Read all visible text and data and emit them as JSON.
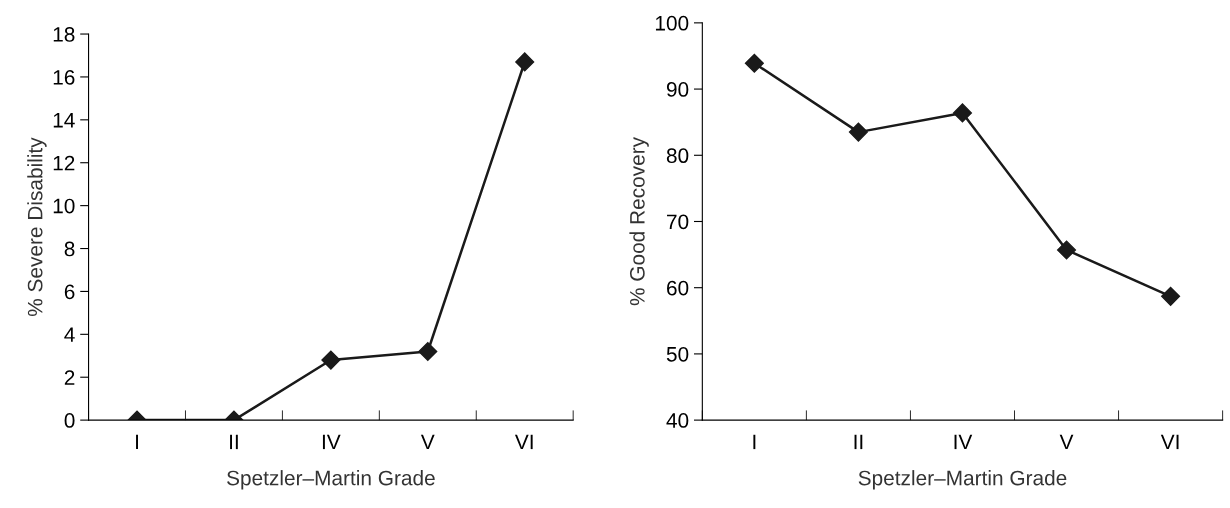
{
  "chart_data": [
    {
      "type": "line",
      "xlabel": "Spetzler–Martin Grade",
      "ylabel": "% Severe Disability",
      "categories": [
        "I",
        "II",
        "IV",
        "V",
        "VI"
      ],
      "series": [
        {
          "color": "#1a1a1a",
          "values": [
            0,
            0,
            2.8,
            3.2,
            16.7
          ]
        }
      ],
      "ylim": [
        0,
        18
      ],
      "yticks": [
        0,
        2,
        4,
        6,
        8,
        10,
        12,
        14,
        16,
        18
      ],
      "marker": "diamond",
      "line_style": "solid",
      "grid": false,
      "legend": false
    },
    {
      "type": "line",
      "xlabel": "Spetzler–Martin Grade",
      "ylabel": "% Good Recovery",
      "categories": [
        "I",
        "II",
        "IV",
        "V",
        "VI"
      ],
      "series": [
        {
          "color": "#1a1a1a",
          "values": [
            93.9,
            83.5,
            86.4,
            65.7,
            58.7
          ]
        }
      ],
      "ylim": [
        40,
        100
      ],
      "yticks": [
        40,
        50,
        60,
        70,
        80,
        90,
        100
      ],
      "marker": "diamond",
      "line_style": "solid",
      "grid": false,
      "legend": false
    }
  ]
}
